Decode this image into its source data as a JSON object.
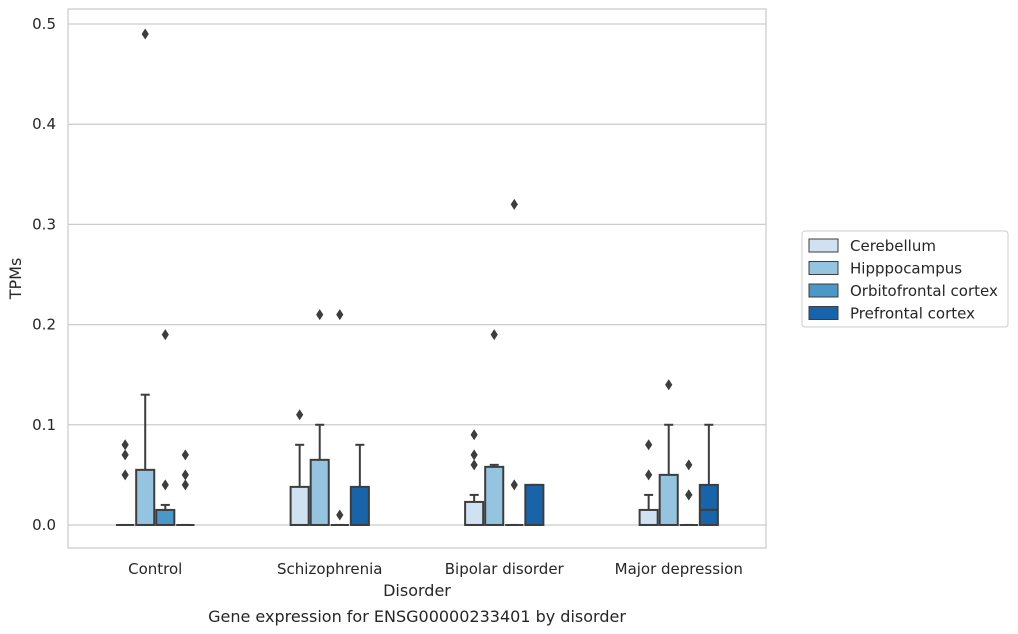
{
  "chart_data": {
    "type": "box",
    "caption": "Gene expression for ENSG00000233401 by disorder",
    "xlabel": "Disorder",
    "ylabel": "TPMs",
    "ylim": [
      -0.023,
      0.515
    ],
    "yticks": [
      0.0,
      0.1,
      0.2,
      0.3,
      0.4,
      0.5
    ],
    "ytick_labels": [
      "0.0",
      "0.1",
      "0.2",
      "0.3",
      "0.4",
      "0.5"
    ],
    "grid": true,
    "legend_position": "right",
    "categories": [
      "Control",
      "Schizophrenia",
      "Bipolar disorder",
      "Major depression"
    ],
    "series": [
      {
        "name": "Cerebellum",
        "color": "#d0e1f2",
        "boxes": [
          {
            "q1": 0.0,
            "median": 0.0,
            "q3": 0.0,
            "whislo": 0.0,
            "whishi": 0.0,
            "fliers": [
              0.05,
              0.07,
              0.08
            ]
          },
          {
            "q1": 0.0,
            "median": 0.0,
            "q3": 0.038,
            "whislo": 0.0,
            "whishi": 0.08,
            "fliers": [
              0.11
            ]
          },
          {
            "q1": 0.0,
            "median": 0.0,
            "q3": 0.023,
            "whislo": 0.0,
            "whishi": 0.03,
            "fliers": [
              0.06,
              0.07,
              0.09
            ]
          },
          {
            "q1": 0.0,
            "median": 0.0,
            "q3": 0.015,
            "whislo": 0.0,
            "whishi": 0.03,
            "fliers": [
              0.05,
              0.08
            ]
          }
        ]
      },
      {
        "name": "Hipppocampus",
        "color": "#94c4df",
        "boxes": [
          {
            "q1": 0.0,
            "median": 0.0,
            "q3": 0.055,
            "whislo": 0.0,
            "whishi": 0.13,
            "fliers": [
              0.49
            ]
          },
          {
            "q1": 0.0,
            "median": 0.0,
            "q3": 0.065,
            "whislo": 0.0,
            "whishi": 0.1,
            "fliers": [
              0.21
            ]
          },
          {
            "q1": 0.0,
            "median": 0.0,
            "q3": 0.058,
            "whislo": 0.0,
            "whishi": 0.06,
            "fliers": [
              0.19
            ]
          },
          {
            "q1": 0.0,
            "median": 0.0,
            "q3": 0.05,
            "whislo": 0.0,
            "whishi": 0.1,
            "fliers": [
              0.14
            ]
          }
        ]
      },
      {
        "name": "Orbitofrontal cortex",
        "color": "#4a98c9",
        "boxes": [
          {
            "q1": 0.0,
            "median": 0.0,
            "q3": 0.015,
            "whislo": 0.0,
            "whishi": 0.02,
            "fliers": [
              0.04,
              0.19
            ]
          },
          {
            "q1": 0.0,
            "median": 0.0,
            "q3": 0.0,
            "whislo": 0.0,
            "whishi": 0.0,
            "fliers": [
              0.01,
              0.21
            ]
          },
          {
            "q1": 0.0,
            "median": 0.0,
            "q3": 0.0,
            "whislo": 0.0,
            "whishi": 0.0,
            "fliers": [
              0.04,
              0.32
            ]
          },
          {
            "q1": 0.0,
            "median": 0.0,
            "q3": 0.0,
            "whislo": 0.0,
            "whishi": 0.0,
            "fliers": [
              0.03,
              0.03,
              0.06
            ]
          }
        ]
      },
      {
        "name": "Prefrontal cortex",
        "color": "#1764ab",
        "boxes": [
          {
            "q1": 0.0,
            "median": 0.0,
            "q3": 0.0,
            "whislo": 0.0,
            "whishi": 0.0,
            "fliers": [
              0.04,
              0.05,
              0.07
            ]
          },
          {
            "q1": 0.0,
            "median": 0.0,
            "q3": 0.038,
            "whislo": 0.0,
            "whishi": 0.08,
            "fliers": []
          },
          {
            "q1": 0.0,
            "median": 0.0,
            "q3": 0.04,
            "whislo": 0.0,
            "whishi": 0.04,
            "fliers": []
          },
          {
            "q1": 0.0,
            "median": 0.015,
            "q3": 0.04,
            "whislo": 0.0,
            "whishi": 0.1,
            "fliers": []
          }
        ]
      }
    ]
  }
}
